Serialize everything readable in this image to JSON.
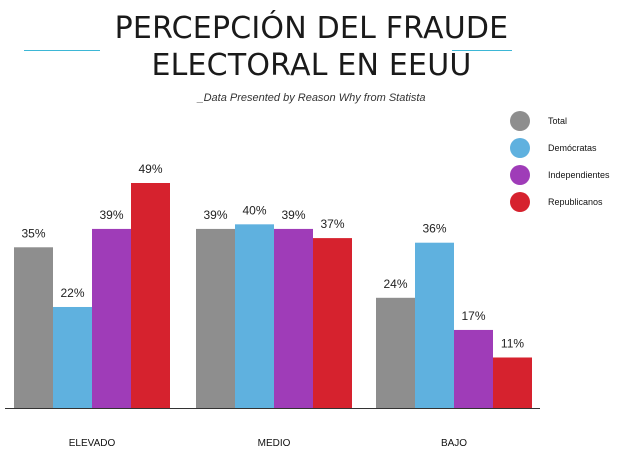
{
  "title_line1": "PERCEPCIÓN DEL FRAUDE",
  "title_line2": "ELECTORAL EN EEUU",
  "subtitle": "_Data Presented by Reason Why from Statista",
  "colors": {
    "accent_line": "#3db7d6",
    "axis": "#333333"
  },
  "chart_data": {
    "type": "bar",
    "categories": [
      "ELEVADO",
      "MEDIO",
      "BAJO"
    ],
    "series": [
      {
        "name": "Total",
        "color": "#8e8e8e",
        "values": [
          35,
          39,
          24
        ]
      },
      {
        "name": "Demócratas",
        "color": "#5fb1df",
        "values": [
          22,
          40,
          36
        ]
      },
      {
        "name": "Independientes",
        "color": "#9f3cb8",
        "values": [
          39,
          39,
          17
        ]
      },
      {
        "name": "Republicanos",
        "color": "#d6222e",
        "values": [
          49,
          37,
          11
        ]
      }
    ],
    "value_suffix": "%",
    "ylim": [
      0,
      49
    ],
    "grid": false,
    "legend_position": "top-right"
  }
}
